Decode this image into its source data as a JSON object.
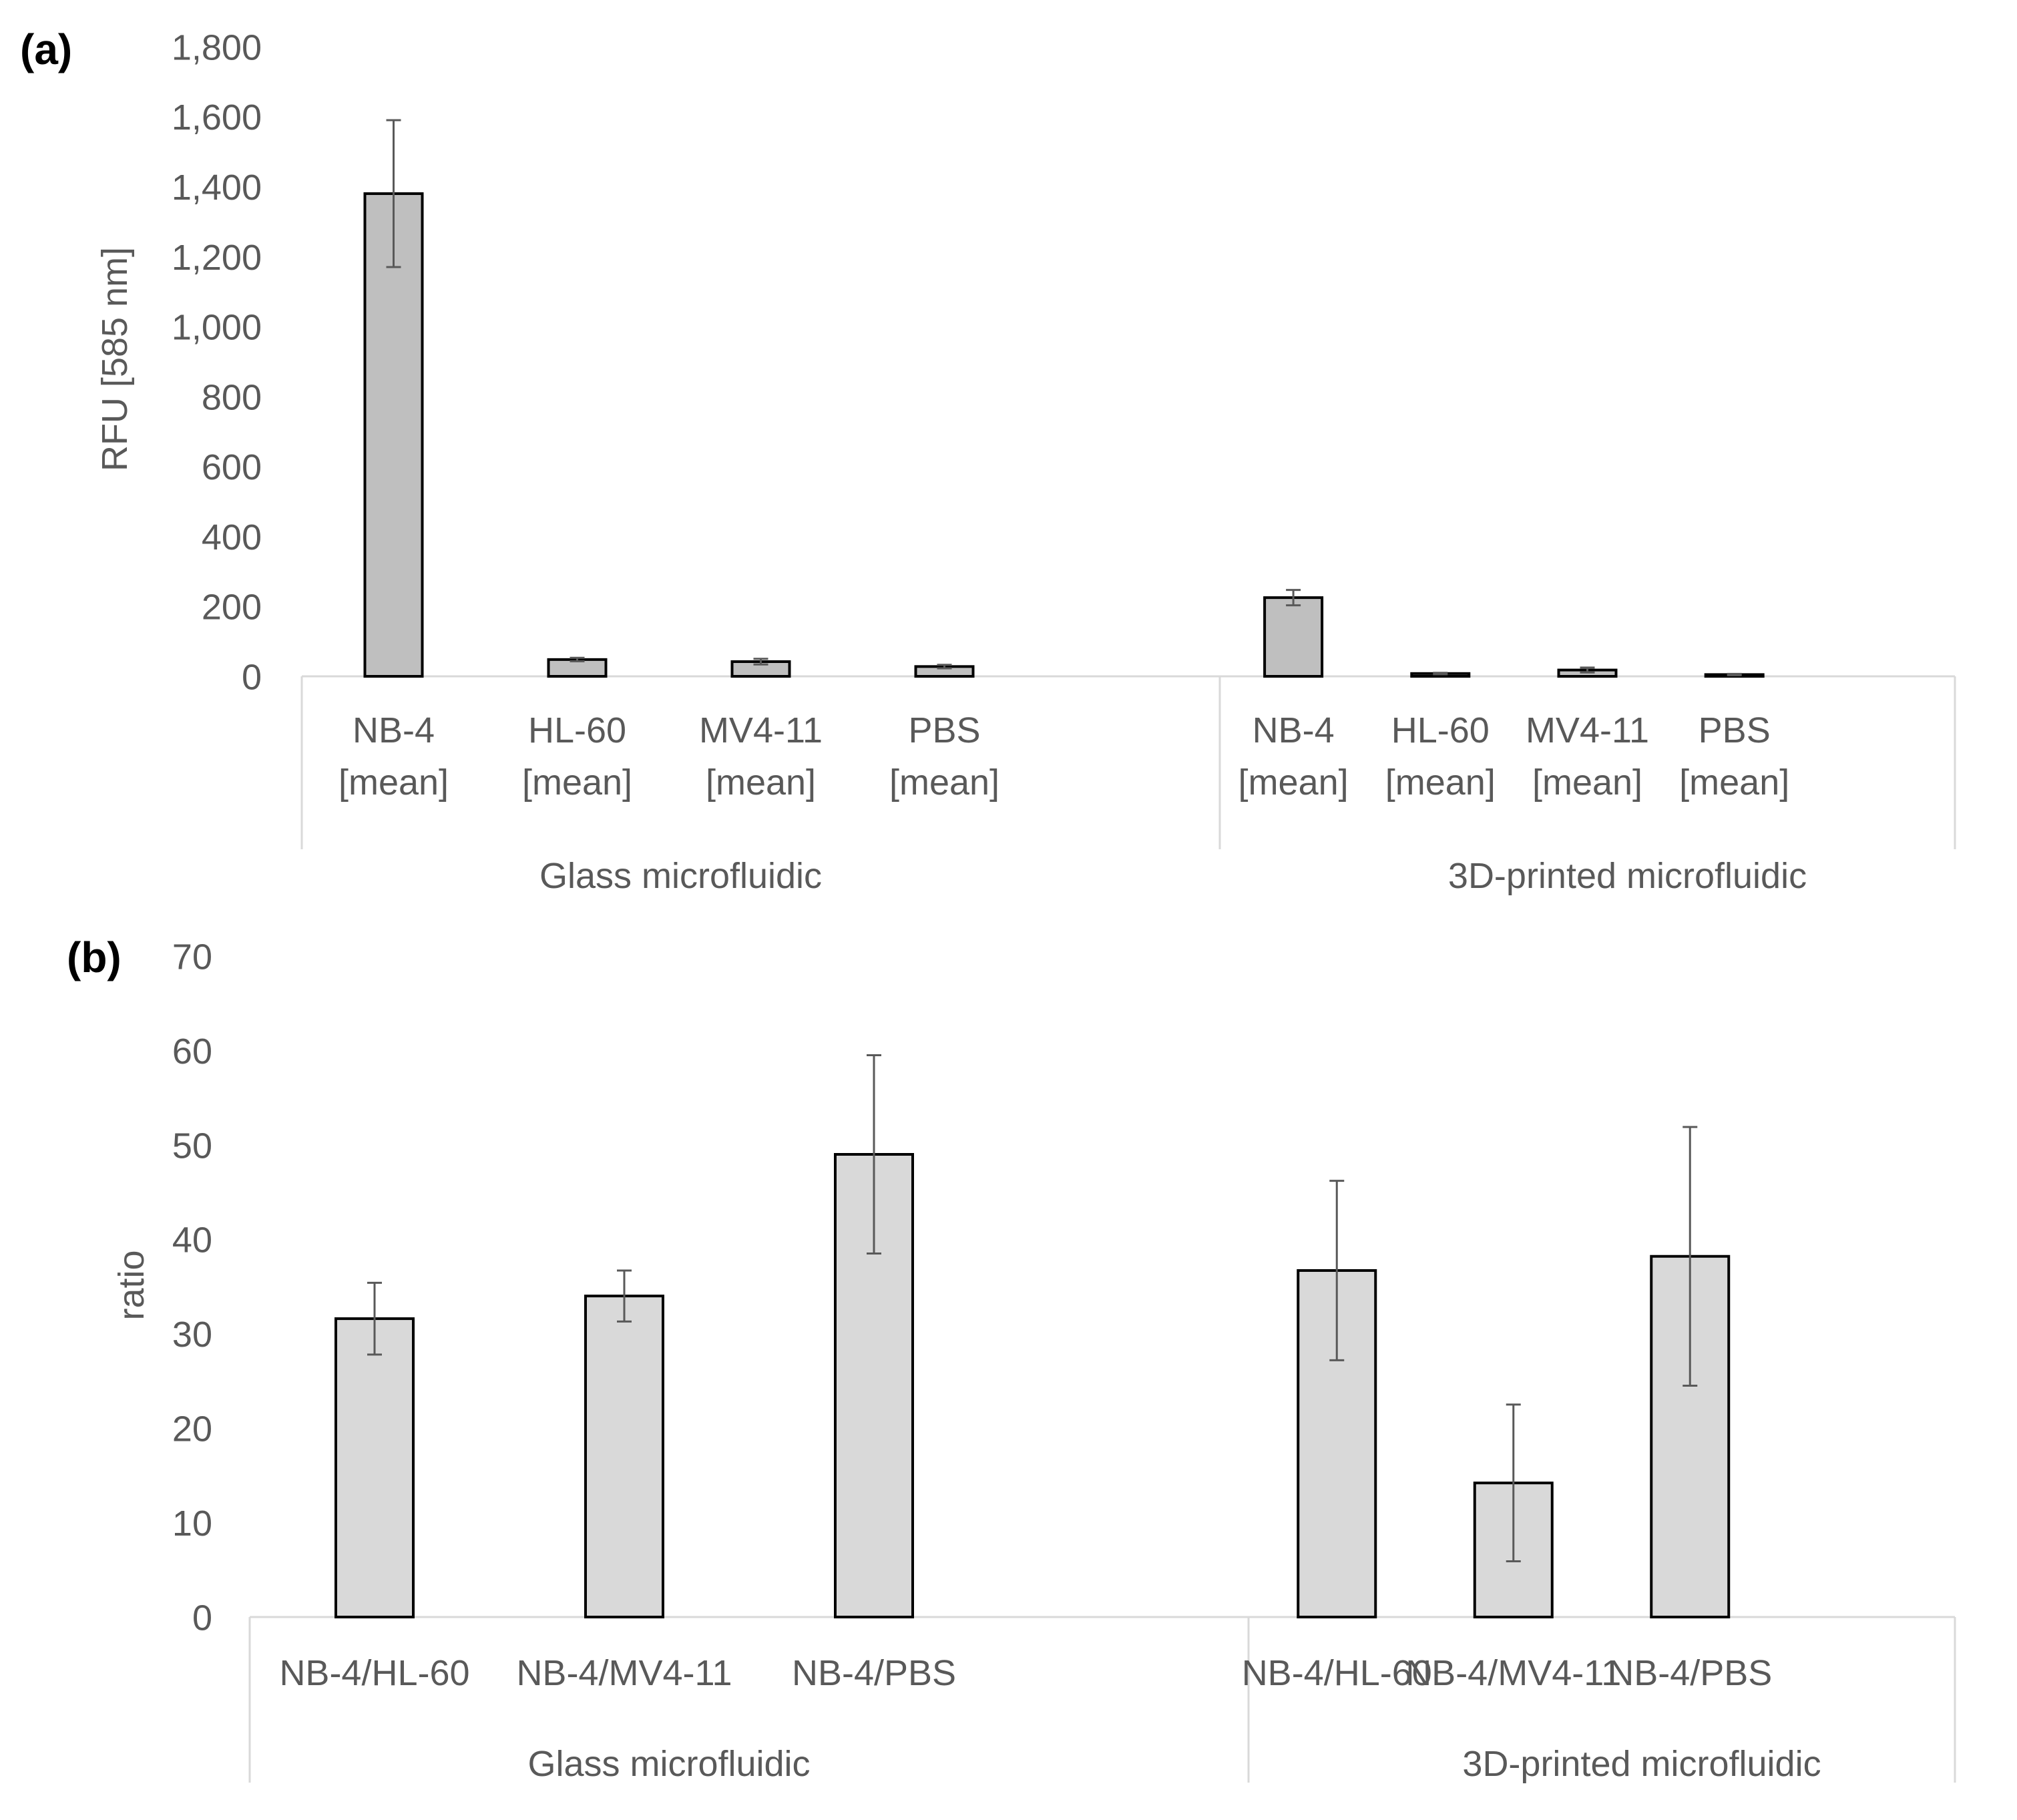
{
  "colors": {
    "text": "#595959",
    "axis": "#d9d9d9",
    "bar_a": "#bfbfbf",
    "bar_b": "#d9d9d9",
    "bar_edge": "#000000",
    "error_bar": "#595959"
  },
  "chart_data": [
    {
      "panel_label": "(a)",
      "type": "bar",
      "title": "",
      "xlabel": "",
      "ylabel": "RFU [585 nm]",
      "ylim": [
        0,
        1800
      ],
      "y_ticks": [
        "0",
        "200",
        "400",
        "600",
        "800",
        "1,000",
        "1,200",
        "1,400",
        "1,600",
        "1,800"
      ],
      "grid": false,
      "legend": "none",
      "groups": [
        {
          "name": "Glass microfluidic",
          "categories": [
            [
              "NB-4",
              "[mean]"
            ],
            [
              "HL-60",
              "[mean]"
            ],
            [
              "MV4-11",
              "[mean]"
            ],
            [
              "PBS",
              "[mean]"
            ]
          ],
          "values": [
            1380,
            48,
            42,
            28
          ],
          "errors": [
            210,
            5,
            8,
            5
          ]
        },
        {
          "name": "3D-printed microfluidic",
          "categories": [
            [
              "NB-4",
              "[mean]"
            ],
            [
              "HL-60",
              "[mean]"
            ],
            [
              "MV4-11",
              "[mean]"
            ],
            [
              "PBS",
              "[mean]"
            ]
          ],
          "values": [
            225,
            8,
            18,
            5
          ],
          "errors": [
            22,
            2,
            7,
            2
          ]
        }
      ]
    },
    {
      "panel_label": "(b)",
      "type": "bar",
      "title": "",
      "xlabel": "",
      "ylabel": "ratio",
      "ylim": [
        0,
        70
      ],
      "y_ticks": [
        "0",
        "10",
        "20",
        "30",
        "40",
        "50",
        "60",
        "70"
      ],
      "grid": false,
      "legend": "none",
      "groups": [
        {
          "name": "Glass microfluidic",
          "categories": [
            [
              "NB-4/HL-60"
            ],
            [
              "NB-4/MV4-11"
            ],
            [
              "NB-4/PBS"
            ]
          ],
          "values": [
            31.6,
            34.0,
            49.0
          ],
          "errors": [
            3.8,
            2.7,
            10.5
          ]
        },
        {
          "name": "3D-printed microfluidic",
          "categories": [
            [
              "NB-4/HL-60"
            ],
            [
              "NB-4/MV4-11"
            ],
            [
              "NB-4/PBS"
            ]
          ],
          "values": [
            36.7,
            14.2,
            38.2
          ],
          "errors": [
            9.5,
            8.3,
            13.7
          ]
        }
      ]
    }
  ]
}
